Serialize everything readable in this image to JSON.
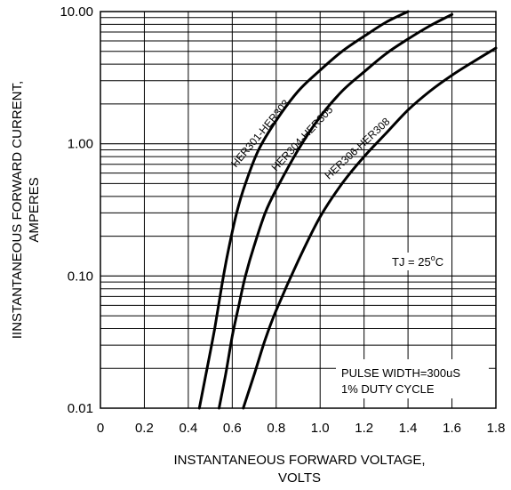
{
  "chart_data": {
    "type": "line",
    "x_scale": "linear",
    "y_scale": "log",
    "xlim": [
      0,
      1.8
    ],
    "ylim": [
      0.01,
      10
    ],
    "grid": true,
    "xticks": [
      "0",
      "0.2",
      "0.4",
      "0.6",
      "0.8",
      "1.0",
      "1.2",
      "1.4",
      "1.6",
      "1.8"
    ],
    "yticks": [
      "0.01",
      "0.10",
      "1.00",
      "10.00"
    ],
    "xlabel_line1": "INSTANTANEOUS FORWARD VOLTAGE,",
    "xlabel_line2": "VOLTS",
    "ylabel_line1": "IINSTANTANEOUS FORWARD CURRENT,",
    "ylabel_line2": "AMPERES",
    "series": [
      {
        "name": "HER301-HER303",
        "x": [
          0.45,
          0.48,
          0.52,
          0.55,
          0.58,
          0.62,
          0.66,
          0.72,
          0.8,
          0.9,
          1.0,
          1.1,
          1.2,
          1.3,
          1.4
        ],
        "y": [
          0.01,
          0.018,
          0.04,
          0.08,
          0.15,
          0.3,
          0.5,
          0.9,
          1.5,
          2.5,
          3.6,
          5.0,
          6.5,
          8.3,
          10.0
        ]
      },
      {
        "name": "HER304-HER305",
        "x": [
          0.54,
          0.57,
          0.6,
          0.63,
          0.66,
          0.7,
          0.75,
          0.8,
          0.9,
          1.0,
          1.1,
          1.2,
          1.3,
          1.4,
          1.5,
          1.6
        ],
        "y": [
          0.01,
          0.018,
          0.035,
          0.06,
          0.1,
          0.17,
          0.3,
          0.45,
          0.9,
          1.6,
          2.5,
          3.5,
          4.8,
          6.2,
          7.8,
          9.5
        ]
      },
      {
        "name": "HER306-HER308",
        "x": [
          0.65,
          0.7,
          0.75,
          0.8,
          0.9,
          1.0,
          1.1,
          1.2,
          1.3,
          1.4,
          1.5,
          1.6,
          1.7,
          1.8
        ],
        "y": [
          0.01,
          0.018,
          0.033,
          0.055,
          0.13,
          0.28,
          0.5,
          0.8,
          1.2,
          1.8,
          2.5,
          3.3,
          4.2,
          5.3
        ]
      }
    ],
    "annotations": {
      "tj_prefix": "TJ = 25",
      "tj_sup": "o",
      "tj_unit": "C",
      "pulse_line1": "PULSE WIDTH=300uS",
      "pulse_line2": "1% DUTY CYCLE"
    },
    "colors": {
      "line": "#000000",
      "grid": "#000000",
      "background": "#ffffff"
    }
  }
}
